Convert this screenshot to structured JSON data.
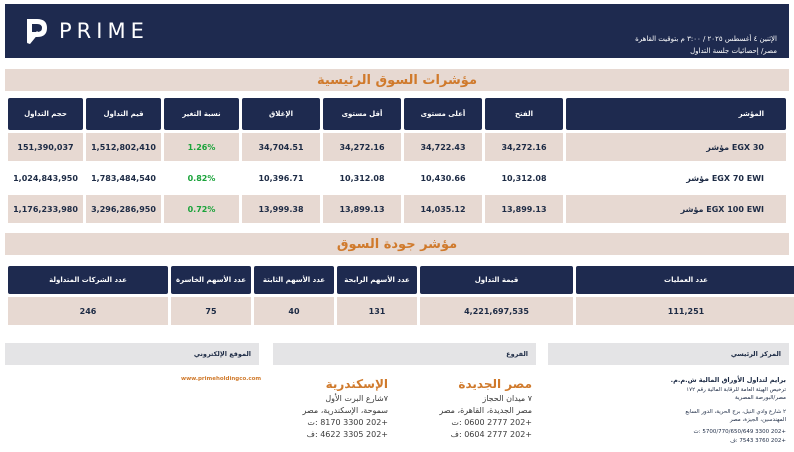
{
  "header": {
    "logo_text": "PRIME",
    "date_line": "الإثنين ٤ أغسطس ٢٠٢٥ / ٣:٠٠ م بتوقيت القاهرة",
    "subtitle_line": "مصر/ إحصائيات جلسة التداول"
  },
  "indices": {
    "title": "مؤشرات السوق الرئيسية",
    "headers": [
      "المؤشر",
      "الفتح",
      "أعلى مستوى",
      "أقل مستوى",
      "الإغلاق",
      "نسبة التغير",
      "قيم التداول",
      "حجم التداول"
    ],
    "rows": [
      {
        "name": "مؤشر EGX 30",
        "open": "34,272.16",
        "high": "34,722.43",
        "low": "34,272.16",
        "close": "34,704.51",
        "change": "1.26%",
        "value": "1,512,802,410",
        "volume": "151,390,037"
      },
      {
        "name": "مؤشر EGX 70 EWI",
        "open": "10,312.08",
        "high": "10,430.66",
        "low": "10,312.08",
        "close": "10,396.71",
        "change": "0.82%",
        "value": "1,783,484,540",
        "volume": "1,024,843,950"
      },
      {
        "name": "مؤشر EGX 100 EWI",
        "open": "13,899.13",
        "high": "14,035.12",
        "low": "13,899.13",
        "close": "13,999.38",
        "change": "0.72%",
        "value": "3,296,286,950",
        "volume": "1,176,233,980"
      }
    ]
  },
  "quality": {
    "title": "مؤشر جودة السوق",
    "headers": {
      "trades": "عدد العمليات",
      "value": "قيمة التداول",
      "gainers": "عدد الأسهم الرابحة",
      "unchanged": "عدد الأسهم الثابتة",
      "losers": "عدد الأسهم الخاسرة",
      "traded": "عدد الشركات المتداولة"
    },
    "values": {
      "trades": "111,251",
      "value": "4,221,697,535",
      "gainers": "131",
      "unchanged": "40",
      "losers": "75",
      "traded": "246"
    }
  },
  "footer": {
    "hq_label": "المركز الرئيسي",
    "branches_label": "الفروع",
    "website_label": "الموقع الإلكتروني",
    "website": "www.primeholdingco.com",
    "hq_lines": [
      "برايم لتداول الأوراق المالية ش.م.م.",
      "ترخيص الهيئة العامة للرقابة المالية رقم ١٧٢",
      "مصر/البورصة المصرية",
      "٢ شارع وادي النيل، برج الحرية، الدور السابع",
      "المهندسين، الجيزة، مصر",
      "+202 3300 5700/770/650/649 :ت",
      "+202 3760 7543 :ف"
    ],
    "cairo": {
      "title": "مصر الجديدة",
      "lines": [
        "٧ ميدان الحجاز",
        "مصر الجديدة، القاهرة، مصر",
        "+202 2777 0600 :ت",
        "+202 2777 0604 :ف"
      ]
    },
    "alex": {
      "title": "الإسكندرية",
      "lines": [
        "٧شارع البرت الأول",
        "سموحة، الإسكندرية، مصر",
        "+202 3300 8170 :ت",
        "+202 3305 4622 :ف"
      ]
    }
  }
}
